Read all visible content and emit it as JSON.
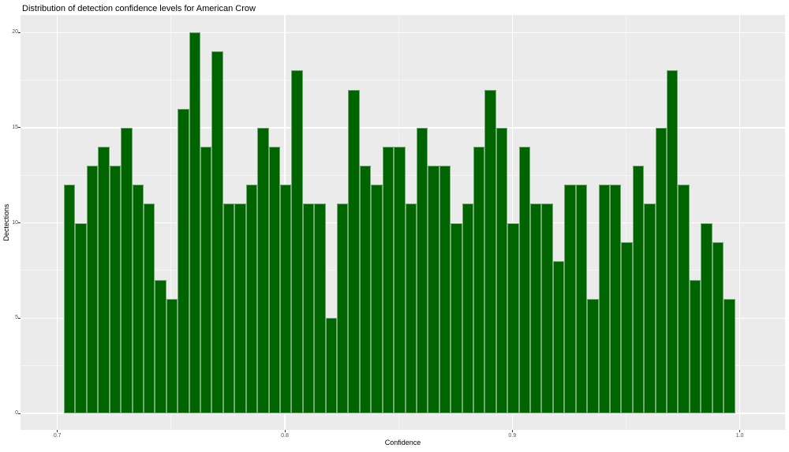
{
  "title": "Distribution of detection confidence levels for American Crow",
  "chart_data": {
    "type": "bar",
    "chart_kind": "histogram",
    "title": "Distribution of detection confidence levels for American Crow",
    "xlabel": "Confidence",
    "ylabel": "Dectections",
    "bin_start": 0.7029,
    "bin_width": 0.005,
    "counts": [
      12,
      10,
      13,
      14,
      13,
      15,
      12,
      11,
      7,
      6,
      16,
      20,
      14,
      19,
      11,
      11,
      12,
      15,
      14,
      12,
      18,
      11,
      11,
      5,
      11,
      17,
      13,
      12,
      14,
      14,
      11,
      15,
      13,
      13,
      10,
      11,
      14,
      17,
      15,
      10,
      14,
      11,
      11,
      8,
      12,
      12,
      6,
      12,
      12,
      9,
      13,
      11,
      15,
      18,
      12,
      7,
      10,
      9,
      6
    ],
    "x_major_ticks": [
      0.7,
      0.8,
      0.9,
      1.0
    ],
    "x_major_tick_labels": [
      "0.7",
      "0.8",
      "0.9",
      "1.0"
    ],
    "x_minor_ticks": [
      0.75,
      0.85,
      0.95
    ],
    "y_major_ticks": [
      0,
      5,
      10,
      15,
      20
    ],
    "y_major_tick_labels": [
      "0",
      "5",
      "10",
      "15",
      "20"
    ],
    "y_minor_ticks": [
      2.5,
      7.5,
      12.5,
      17.5
    ],
    "xlim": [
      0.684,
      1.02
    ],
    "ylim": [
      0,
      20
    ],
    "grid": "white major and minor gridlines on gray panel",
    "legend_position": "none",
    "colors": {
      "bar_fill": "#006400",
      "bar_edge_highlight": "#8FBF8F",
      "panel_background": "#EBEBEB",
      "gridline": "#FFFFFF",
      "tick_label_text": "#4D4D4D",
      "title_text": "#000000",
      "page_background": "#FFFFFF"
    }
  }
}
